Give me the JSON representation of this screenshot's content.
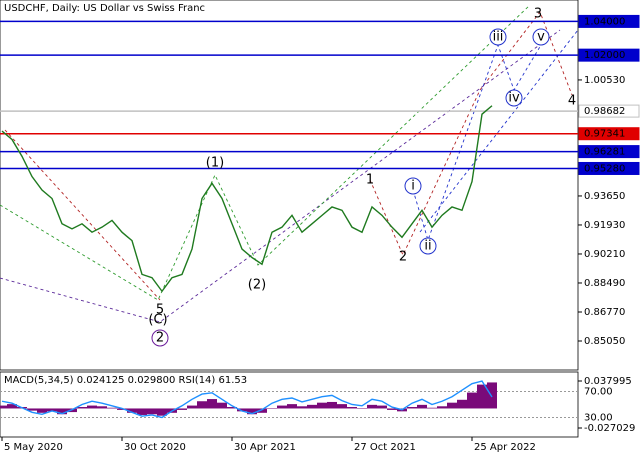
{
  "chart_data": [
    {
      "type": "line",
      "title": "USDCHF, Daily:  US Dollar vs Swiss Franc",
      "color": "#1f7a1f",
      "categories": [
        "5 May 2020",
        null,
        null,
        null,
        null,
        null,
        null,
        null,
        null,
        null,
        null,
        null,
        "30 Oct 2020",
        null,
        null,
        null,
        null,
        null,
        null,
        null,
        null,
        null,
        null,
        "30 Apr 2021",
        null,
        null,
        null,
        null,
        null,
        null,
        null,
        null,
        null,
        null,
        null,
        "27 Oct 2021",
        null,
        null,
        null,
        null,
        null,
        null,
        null,
        null,
        null,
        null,
        null,
        "25 Apr 2022",
        null,
        null
      ],
      "values": [
        0.975,
        0.97,
        0.96,
        0.948,
        0.94,
        0.935,
        0.92,
        0.917,
        0.92,
        0.915,
        0.918,
        0.922,
        0.915,
        0.91,
        0.89,
        0.888,
        0.88,
        0.888,
        0.89,
        0.905,
        0.935,
        0.944,
        0.935,
        0.92,
        0.905,
        0.9,
        0.896,
        0.915,
        0.918,
        0.925,
        0.915,
        0.92,
        0.925,
        0.93,
        0.928,
        0.918,
        0.915,
        0.93,
        0.925,
        0.918,
        0.912,
        0.92,
        0.928,
        0.918,
        0.925,
        0.93,
        0.928,
        0.945,
        0.985,
        0.99
      ],
      "ylim": [
        0.8333,
        1.0527
      ],
      "yticks": [
        {
          "value": 0.8505,
          "label": "0.85050"
        },
        {
          "value": 0.8677,
          "label": "0.86770"
        },
        {
          "value": 0.8849,
          "label": "0.88490"
        },
        {
          "value": 0.9021,
          "label": "0.90210"
        },
        {
          "value": 0.9193,
          "label": "0.91930"
        },
        {
          "value": 0.9365,
          "label": "0.93650"
        },
        {
          "value": 1.0053,
          "label": "1.00530"
        }
      ],
      "levels": [
        {
          "value": 1.04,
          "label": "1.04000",
          "color": "#0000cc"
        },
        {
          "value": 1.02,
          "label": "1.02000",
          "color": "#0000cc"
        },
        {
          "value": 0.98682,
          "label": "0.98682",
          "color": "#c0c0c0"
        },
        {
          "value": 0.97341,
          "label": "0.97341",
          "color": "#e00000"
        },
        {
          "value": 0.96281,
          "label": "0.96281",
          "color": "#0000cc"
        },
        {
          "value": 0.9528,
          "label": "0.95280",
          "color": "#0000cc"
        }
      ],
      "annotations": [
        {
          "text": "(1)",
          "color": "#2e9b2e",
          "circled": false
        },
        {
          "text": "(2)",
          "color": "#2e9b2e",
          "circled": false
        },
        {
          "text": "5",
          "color": "#b22222",
          "circled": false
        },
        {
          "text": "(C)",
          "color": "#2e9b2e",
          "circled": false
        },
        {
          "text": "2",
          "color": "#6a1b9a",
          "circled": true
        },
        {
          "text": "1",
          "color": "#b22222",
          "circled": false
        },
        {
          "text": "2",
          "color": "#b22222",
          "circled": false
        },
        {
          "text": "i",
          "color": "#2233cc",
          "circled": true
        },
        {
          "text": "ii",
          "color": "#2233cc",
          "circled": true
        },
        {
          "text": "iii",
          "color": "#2233cc",
          "circled": true
        },
        {
          "text": "iv",
          "color": "#2233cc",
          "circled": true
        },
        {
          "text": "v",
          "color": "#2233cc",
          "circled": true
        },
        {
          "text": "3",
          "color": "#b22222",
          "circled": false
        },
        {
          "text": "4",
          "color": "#b22222",
          "circled": false
        }
      ]
    },
    {
      "type": "bar",
      "title": "MACD(5,34,5) 0.024125 0.029800 RSI(14) 61.53",
      "series": [
        {
          "color": "#7a0a7a",
          "values": [
            0.004,
            0.006,
            0.002,
            -0.003,
            -0.006,
            -0.004,
            -0.008,
            -0.005,
            0.002,
            0.004,
            0.003,
            0.001,
            -0.002,
            -0.006,
            -0.009,
            -0.008,
            -0.01,
            -0.006,
            -0.002,
            0.004,
            0.01,
            0.013,
            0.008,
            0.002,
            -0.004,
            -0.008,
            -0.006,
            0.0,
            0.004,
            0.006,
            0.003,
            0.005,
            0.008,
            0.009,
            0.006,
            0.002,
            0.0,
            0.005,
            0.004,
            -0.002,
            -0.004,
            0.002,
            0.005,
            0.001,
            0.003,
            0.008,
            0.012,
            0.022,
            0.033,
            0.036
          ]
        },
        {
          "color": "#1e90ff",
          "axis": "y2",
          "values": [
            55,
            52,
            45,
            38,
            35,
            40,
            36,
            42,
            50,
            55,
            52,
            48,
            44,
            38,
            32,
            34,
            30,
            40,
            48,
            58,
            66,
            68,
            58,
            48,
            40,
            36,
            42,
            52,
            58,
            60,
            54,
            58,
            62,
            64,
            56,
            50,
            48,
            58,
            55,
            46,
            42,
            52,
            58,
            50,
            55,
            62,
            72,
            82,
            86,
            61.53
          ]
        }
      ],
      "ylim": [
        -0.03948,
        0.05045
      ],
      "yticks": [
        -0.027029,
        0.037995
      ],
      "y2lim": [
        0,
        100
      ],
      "y2ticks": [
        {
          "value": 30,
          "label": "30.00"
        },
        {
          "value": 70,
          "label": "70.00"
        }
      ]
    }
  ]
}
